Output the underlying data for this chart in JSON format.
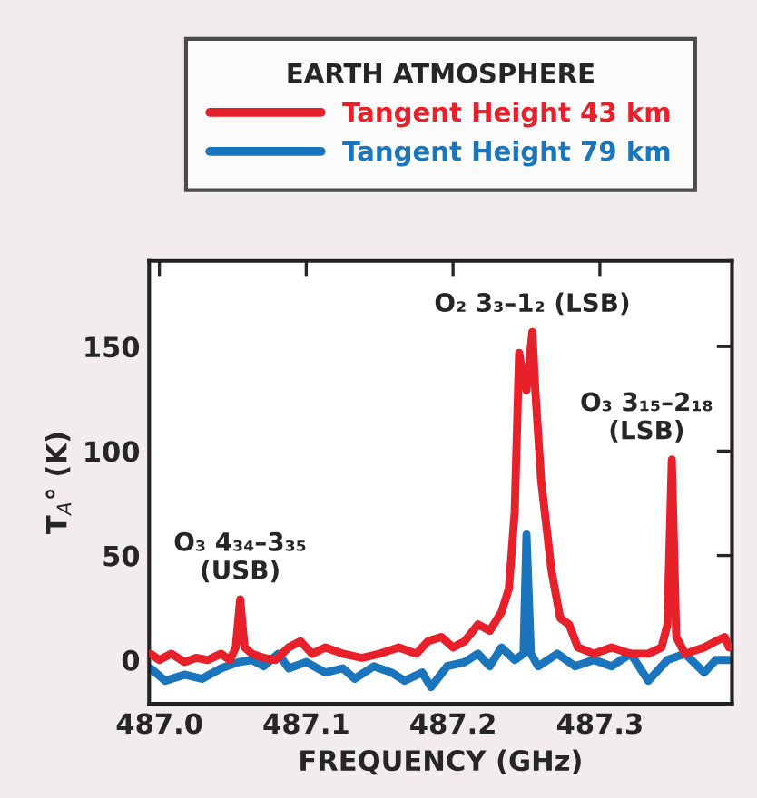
{
  "chart_data": {
    "type": "line",
    "xlabel": "FREQUENCY (GHz)",
    "ylabel": "T$_{A}$° (K)",
    "legend_title": "EARTH ATMOSPHERE",
    "legend": "top",
    "xlim": [
      486.993,
      487.39
    ],
    "ylim": [
      -21,
      191
    ],
    "xticks": [
      {
        "value": 487.0,
        "label": "487.0"
      },
      {
        "value": 487.1,
        "label": "487.1"
      },
      {
        "value": 487.2,
        "label": "487.2"
      },
      {
        "value": 487.3,
        "label": "487.3"
      }
    ],
    "yticks": [
      0,
      50,
      100,
      150
    ],
    "annotations": [
      {
        "text": "O₂ 3₃–1₂ (LSB)",
        "x": 487.254,
        "y": 157
      },
      {
        "text": "O₃ 4₃₄–3₃₅\n(USB)",
        "x": 487.055,
        "y": 29
      },
      {
        "text": "O₃ 3₁₅–2₁₈\n(LSB)",
        "x": 487.349,
        "y": 96
      }
    ],
    "series": [
      {
        "name": "Tangent Height 43 km",
        "color": "#e8202a",
        "x": [
          486.994,
          487.0,
          487.008,
          487.017,
          487.025,
          487.033,
          487.042,
          487.048,
          487.052,
          487.055,
          487.058,
          487.063,
          487.071,
          487.079,
          487.088,
          487.096,
          487.104,
          487.113,
          487.125,
          487.138,
          487.15,
          487.163,
          487.175,
          487.183,
          487.192,
          487.2,
          487.208,
          487.217,
          487.225,
          487.233,
          487.238,
          487.242,
          487.245,
          487.248,
          487.25,
          487.252,
          487.254,
          487.256,
          487.26,
          487.267,
          487.273,
          487.279,
          487.285,
          487.296,
          487.308,
          487.321,
          487.333,
          487.342,
          487.346,
          487.349,
          487.352,
          487.358,
          487.371,
          487.379,
          487.385,
          487.388
        ],
        "values": [
          3,
          0,
          3,
          -1,
          1,
          0,
          3,
          0,
          6,
          29,
          6,
          3,
          1,
          0,
          6,
          9,
          3,
          6,
          3,
          1,
          3,
          6,
          3,
          9,
          11,
          6,
          9,
          17,
          14,
          23,
          34,
          71,
          147,
          134,
          129,
          143,
          157,
          129,
          86,
          43,
          20,
          17,
          6,
          3,
          6,
          3,
          3,
          6,
          17,
          96,
          11,
          3,
          6,
          9,
          11,
          6
        ]
      },
      {
        "name": "Tangent Height 79 km",
        "color": "#1a75bc",
        "x": [
          486.994,
          487.004,
          487.017,
          487.029,
          487.042,
          487.054,
          487.063,
          487.071,
          487.081,
          487.088,
          487.1,
          487.113,
          487.125,
          487.133,
          487.146,
          487.158,
          487.167,
          487.179,
          487.185,
          487.196,
          487.208,
          487.217,
          487.225,
          487.233,
          487.242,
          487.248,
          487.25,
          487.253,
          487.258,
          487.271,
          487.283,
          487.296,
          487.308,
          487.321,
          487.333,
          487.346,
          487.358,
          487.371,
          487.379,
          487.388
        ],
        "values": [
          -4,
          -10,
          -7,
          -9,
          -4,
          -1,
          0,
          -3,
          3,
          -4,
          -1,
          -6,
          -4,
          -9,
          -3,
          -6,
          -10,
          -6,
          -13,
          -3,
          -1,
          3,
          -3,
          6,
          0,
          3,
          60,
          3,
          -3,
          3,
          -3,
          0,
          -3,
          3,
          -10,
          0,
          3,
          -6,
          0,
          0
        ]
      }
    ]
  }
}
